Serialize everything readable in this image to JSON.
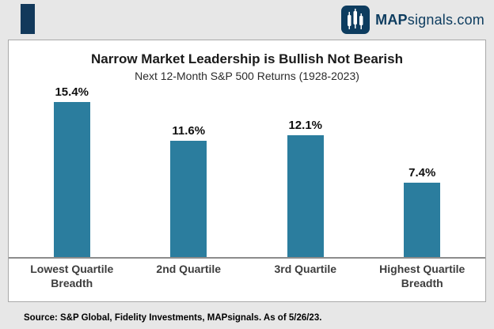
{
  "header": {
    "logo_text_bold": "MAP",
    "logo_text_rest": "signals.com"
  },
  "chart": {
    "title": "Narrow Market Leadership is Bullish Not Bearish",
    "subtitle": "Next 12-Month S&P 500 Returns (1928-2023)"
  },
  "chart_data": {
    "type": "bar",
    "title": "Narrow Market Leadership is Bullish Not Bearish",
    "subtitle": "Next 12-Month S&P 500 Returns (1928-2023)",
    "categories": [
      "Lowest Quartile Breadth",
      "2nd Quartile",
      "3rd Quartile",
      "Highest Quartile Breadth"
    ],
    "values": [
      15.4,
      11.6,
      12.1,
      7.4
    ],
    "value_labels": [
      "15.4%",
      "11.6%",
      "12.1%",
      "7.4%"
    ],
    "label_lines": [
      [
        "Lowest Quartile",
        "Breadth"
      ],
      [
        "2nd Quartile"
      ],
      [
        "3rd Quartile"
      ],
      [
        "Highest Quartile",
        "Breadth"
      ]
    ],
    "bar_color": "#2b7d9e",
    "xlabel": "",
    "ylabel": "",
    "ylim": [
      0,
      17
    ],
    "grid": false,
    "legend": false
  },
  "footer": {
    "source": "Source: S&P Global, Fidelity Investments, MAPsignals. As of 5/26/23."
  },
  "colors": {
    "accent_navy": "#12395b",
    "bar_teal": "#2b7d9e",
    "background": "#e7e7e7"
  }
}
